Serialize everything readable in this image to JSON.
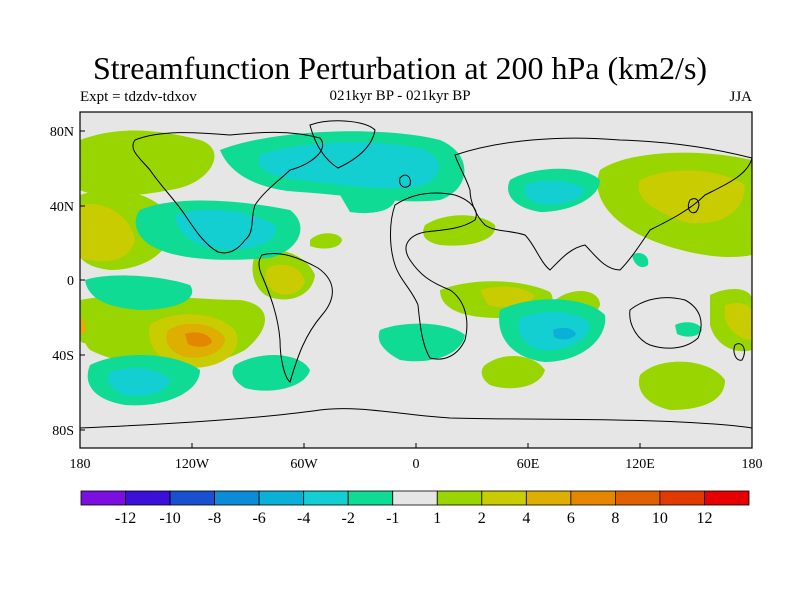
{
  "figure": {
    "title": "Streamfunction Perturbation at 200 hPa (km2/s)",
    "left_string": "Expt = tdzdv-tdxov",
    "center_string": "021kyr BP - 021kyr BP",
    "right_string": "JJA"
  },
  "map": {
    "projection": "cylindrical equidistant",
    "lon_range": [
      -180,
      180
    ],
    "lat_range": [
      -90,
      90
    ],
    "x_ticks": [
      "180",
      "120W",
      "60W",
      "0",
      "60E",
      "120E",
      "180"
    ],
    "y_ticks": [
      "80N",
      "40N",
      "0",
      "40S",
      "80S"
    ],
    "background_label": "-1 to 1"
  },
  "colorbar": {
    "colors": [
      "#7b0fe0",
      "#3c10d8",
      "#1950d0",
      "#0b8cd6",
      "#0ab0d6",
      "#13cfd1",
      "#0fdb95",
      "#e6e6e6",
      "#99d500",
      "#c8cc00",
      "#deae00",
      "#e48600",
      "#e06000",
      "#e03a00",
      "#e60000"
    ],
    "labels": [
      "-12",
      "-10",
      "-8",
      "-6",
      "-4",
      "-2",
      "-1",
      "1",
      "2",
      "4",
      "6",
      "8",
      "10",
      "12"
    ]
  }
}
